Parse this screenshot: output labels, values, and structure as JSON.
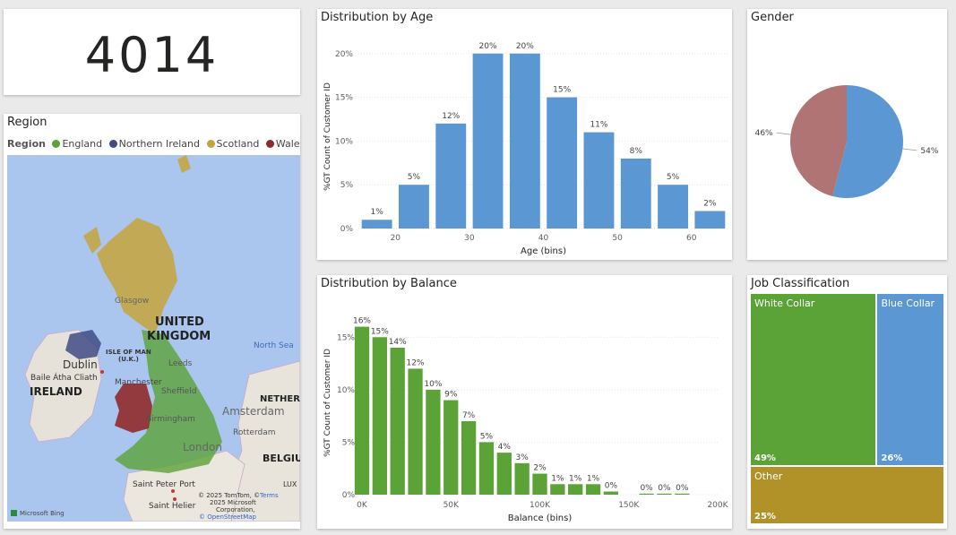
{
  "kpi": {
    "value": "4014"
  },
  "region": {
    "title": "Region",
    "legend_title": "Region",
    "legend": [
      {
        "name": "England",
        "color": "#5ba237"
      },
      {
        "name": "Northern Ireland",
        "color": "#3f4b85"
      },
      {
        "name": "Scotland",
        "color": "#c6a33a"
      },
      {
        "name": "Wales",
        "color": "#8f2a2a"
      }
    ],
    "map_labels": {
      "uk1": "UNITED",
      "uk2": "KINGDOM",
      "ireland": "IRELAND",
      "dublin": "Dublin",
      "baile": "Baile Átha Cliath",
      "isle1": "ISLE OF MAN",
      "isle2": "(U.K.)",
      "glasgow": "Glasgow",
      "leeds": "Leeds",
      "manchester": "Manchester",
      "sheffield": "Sheffield",
      "birmingham": "Birmingham",
      "london": "London",
      "north_sea": "North Sea",
      "amsterdam": "Amsterdam",
      "rotterdam": "Rotterdam",
      "nether": "NETHER",
      "belgi": "BELGIU",
      "saint_peter": "Saint Peter Port",
      "saint_helier": "Saint Helier",
      "lux": "LUX",
      "credit1": "© 2025 TomTom, ©",
      "credit1b": "Terms",
      "credit2": "2025 Microsoft",
      "credit3": "Corporation,",
      "credit4": "© OpenStreetMap",
      "bing": "Microsoft Bing"
    }
  },
  "age_chart": {
    "title": "Distribution by Age",
    "chart_data": {
      "type": "bar",
      "x": [
        17.5,
        22.5,
        27.5,
        32.5,
        37.5,
        42.5,
        47.5,
        52.5,
        57.5,
        62.5
      ],
      "values": [
        1,
        5,
        12,
        20,
        20,
        15,
        11,
        8,
        5,
        2
      ],
      "data_labels": [
        "1%",
        "5%",
        "12%",
        "20%",
        "20%",
        "15%",
        "11%",
        "8%",
        "5%",
        "2%"
      ],
      "xlabel": "Age (bins)",
      "ylabel": "%GT Count of Customer ID",
      "xticks": [
        20,
        30,
        40,
        50,
        60
      ],
      "yticks": [
        "0%",
        "5%",
        "10%",
        "15%",
        "20%"
      ],
      "ylim": [
        0,
        21
      ],
      "color": "#5b97d3"
    }
  },
  "balance_chart": {
    "title": "Distribution by Balance",
    "chart_data": {
      "type": "bar",
      "x": [
        0,
        10000,
        20000,
        30000,
        40000,
        50000,
        60000,
        70000,
        80000,
        90000,
        100000,
        110000,
        120000,
        130000,
        140000,
        160000,
        170000,
        180000
      ],
      "values": [
        16,
        15,
        14,
        12,
        10,
        9,
        7,
        5,
        4,
        3,
        2,
        1,
        1,
        1,
        0.3,
        0.1,
        0.1,
        0.1
      ],
      "data_labels": [
        "16%",
        "15%",
        "14%",
        "12%",
        "10%",
        "9%",
        "7%",
        "5%",
        "4%",
        "3%",
        "2%",
        "1%",
        "1%",
        "1%",
        "0%",
        "0%",
        "0%",
        "0%"
      ],
      "xlabel": "Balance (bins)",
      "ylabel": "%GT Count of Customer ID",
      "xticks": [
        "0K",
        "50K",
        "100K",
        "150K",
        "200K"
      ],
      "yticks": [
        "0%",
        "5%",
        "10%",
        "15%"
      ],
      "ylim": [
        0,
        17.5
      ],
      "color": "#5ba237"
    }
  },
  "gender_chart": {
    "title": "Gender",
    "chart_data": {
      "type": "pie",
      "slices": [
        {
          "label": "54%",
          "value": 54,
          "color": "#5b97d3"
        },
        {
          "label": "46%",
          "value": 46,
          "color": "#b07474"
        }
      ]
    }
  },
  "job_chart": {
    "title": "Job Classification",
    "chart_data": {
      "type": "treemap",
      "items": [
        {
          "name": "White Collar",
          "value": 49,
          "pct": "49%",
          "color": "#5ba237"
        },
        {
          "name": "Blue Collar",
          "value": 26,
          "pct": "26%",
          "color": "#5b97d3"
        },
        {
          "name": "Other",
          "value": 25,
          "pct": "25%",
          "color": "#b09228"
        }
      ]
    }
  }
}
